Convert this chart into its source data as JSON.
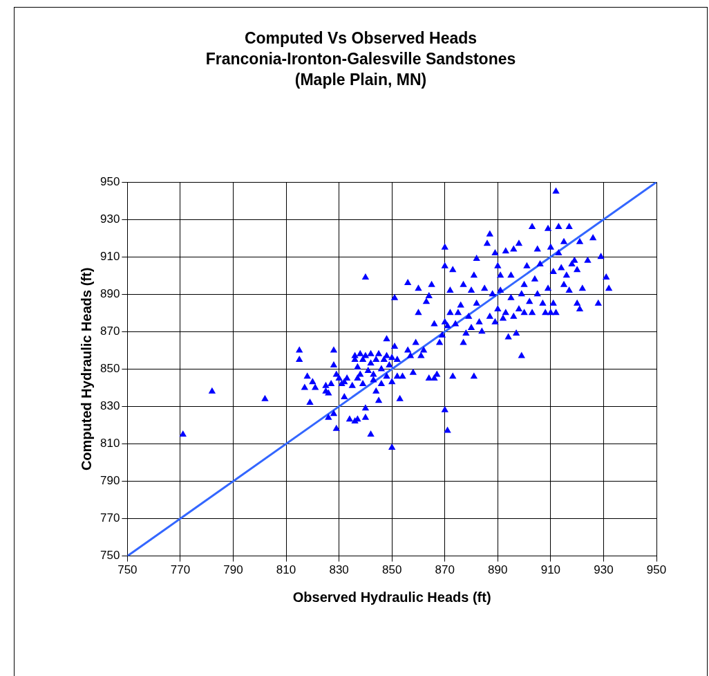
{
  "chart_data": {
    "type": "scatter",
    "title": "Computed Vs Observed Heads\nFranconia-Ironton-Galesville Sandstones\n(Maple Plain, MN)",
    "xlabel": "Observed Hydraulic Heads (ft)",
    "ylabel": "Computed Hydraulic Heads (ft)",
    "xlim": [
      750,
      950
    ],
    "ylim": [
      750,
      950
    ],
    "xticks": [
      750,
      770,
      790,
      810,
      830,
      850,
      870,
      890,
      910,
      930,
      950
    ],
    "yticks": [
      750,
      770,
      790,
      810,
      830,
      850,
      870,
      890,
      910,
      930,
      950
    ],
    "grid": true,
    "legend": false,
    "series": [
      {
        "color": "#0000ff",
        "marker": "triangle",
        "x": [
          771,
          782,
          802,
          840,
          850,
          871,
          870,
          881,
          899,
          912,
          815,
          815,
          817,
          818,
          819,
          820,
          821,
          825,
          825,
          826,
          826,
          827,
          828,
          828,
          828,
          829,
          829,
          830,
          831,
          832,
          832,
          833,
          834,
          835,
          836,
          836,
          836,
          837,
          837,
          837,
          838,
          838,
          839,
          839,
          840,
          840,
          840,
          841,
          842,
          842,
          842,
          843,
          843,
          844,
          844,
          845,
          845,
          846,
          846,
          847,
          848,
          848,
          848,
          849,
          850,
          850,
          851,
          851,
          852,
          852,
          853,
          854,
          856,
          856,
          857,
          858,
          859,
          860,
          860,
          861,
          862,
          863,
          864,
          864,
          865,
          866,
          866,
          867,
          868,
          869,
          870,
          870,
          870,
          871,
          872,
          872,
          873,
          873,
          874,
          875,
          876,
          877,
          877,
          878,
          879,
          880,
          880,
          881,
          882,
          882,
          883,
          884,
          885,
          886,
          887,
          887,
          888,
          889,
          889,
          890,
          890,
          891,
          891,
          892,
          893,
          893,
          894,
          895,
          895,
          896,
          896,
          897,
          898,
          898,
          899,
          900,
          900,
          901,
          902,
          903,
          903,
          904,
          905,
          905,
          906,
          907,
          908,
          909,
          909,
          910,
          910,
          911,
          911,
          912,
          913,
          913,
          914,
          915,
          915,
          916,
          917,
          917,
          918,
          919,
          920,
          920,
          921,
          921,
          922,
          924,
          926,
          928,
          929,
          931,
          932
        ],
        "values": [
          815,
          838,
          834,
          899,
          808,
          817,
          828,
          846,
          857,
          945,
          860,
          855,
          840,
          846,
          832,
          843,
          840,
          841,
          838,
          824,
          837,
          842,
          826,
          860,
          852,
          818,
          847,
          845,
          842,
          835,
          843,
          845,
          823,
          841,
          822,
          857,
          855,
          823,
          851,
          845,
          858,
          847,
          855,
          842,
          824,
          829,
          857,
          849,
          853,
          815,
          858,
          844,
          847,
          855,
          838,
          833,
          858,
          842,
          850,
          855,
          857,
          846,
          866,
          852,
          856,
          843,
          888,
          862,
          855,
          846,
          834,
          846,
          896,
          860,
          857,
          848,
          864,
          880,
          893,
          857,
          860,
          886,
          889,
          845,
          895,
          845,
          874,
          847,
          864,
          868,
          905,
          915,
          875,
          873,
          880,
          892,
          903,
          846,
          874,
          880,
          884,
          864,
          895,
          869,
          878,
          892,
          872,
          900,
          885,
          909,
          875,
          870,
          893,
          917,
          922,
          878,
          890,
          912,
          875,
          905,
          882,
          900,
          892,
          877,
          880,
          913,
          867,
          900,
          888,
          878,
          914,
          869,
          917,
          882,
          890,
          880,
          895,
          905,
          886,
          926,
          880,
          898,
          890,
          914,
          906,
          885,
          880,
          925,
          893,
          915,
          880,
          902,
          885,
          880,
          926,
          912,
          904,
          895,
          918,
          900,
          926,
          892,
          906,
          908,
          885,
          903,
          918,
          882,
          893,
          908,
          920,
          885,
          910,
          899,
          893
        ]
      },
      {
        "type": "line",
        "color": "#3366ff",
        "marker": "none",
        "x": [
          750,
          950
        ],
        "values": [
          750,
          950
        ]
      }
    ]
  }
}
